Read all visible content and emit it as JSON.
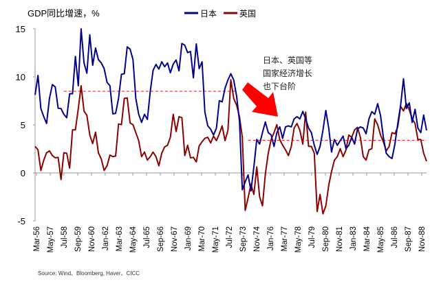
{
  "chart_data": {
    "type": "line",
    "ylabel": "GDP同比增速，%",
    "ylim": [
      -5,
      15
    ],
    "yticks": [
      "15",
      "10",
      "5",
      "0",
      "-5"
    ],
    "ytick_values": [
      15,
      10,
      5,
      0,
      -5
    ],
    "frequency": "quarterly",
    "start": "1956Q1",
    "xtick_labels": [
      "Mar-56",
      "May-57",
      "Jul-58",
      "Sep-59",
      "Nov-60",
      "Jan-62",
      "Mar-63",
      "May-64",
      "Jul-65",
      "Sep-66",
      "Nov-67",
      "Jan-69",
      "Mar-70",
      "May-71",
      "Jul-72",
      "Sep-73",
      "Nov-74",
      "Jan-76",
      "Mar-77",
      "May-78",
      "Jul-79",
      "Sep-80",
      "Nov-81",
      "Jan-83",
      "Mar-84",
      "May-85",
      "Jul-86",
      "Sep-87",
      "Nov-88"
    ],
    "legend_position": "top-center",
    "series": [
      {
        "name": "日本",
        "color": "#00008B",
        "values": [
          8.12,
          10.14,
          6.69,
          5.86,
          5.14,
          7.76,
          9.19,
          8.95,
          6.74,
          6.69,
          6.1,
          5.74,
          8.24,
          8.24,
          12.12,
          9.07,
          15.0,
          11.45,
          10.38,
          14.38,
          11.2,
          13.0,
          11.8,
          11.45,
          10.86,
          9.43,
          9.07,
          6.14,
          6.21,
          7.76,
          10.26,
          10.33,
          13.12,
          12.88,
          11.8,
          7.76,
          6.1,
          5.26,
          6.1,
          5.57,
          8.48,
          10.67,
          11.29,
          10.81,
          11.57,
          11.05,
          11.45,
          10.43,
          11.33,
          11.76,
          10.62,
          13.48,
          13.29,
          12.52,
          12.64,
          9.9,
          13.43,
          10.86,
          11.57,
          6.33,
          4.9,
          4.55,
          3.95,
          4.67,
          7.52,
          7.4,
          8.83,
          9.67,
          10.33,
          9.67,
          8.0,
          5.38,
          -1.76,
          -0.93,
          -0.21,
          -1.88,
          0.62,
          3.48,
          3.0,
          4.19,
          5.31,
          4.19,
          3.95,
          2.76,
          4.19,
          4.79,
          3.6,
          4.79,
          4.9,
          4.79,
          5.62,
          5.86,
          5.62,
          6.4,
          5.62,
          4.67,
          4.19,
          2.88,
          1.93,
          2.76,
          4.43,
          6.5,
          4.67,
          2.17,
          3.48,
          2.88,
          3.36,
          3.83,
          2.52,
          2.88,
          3.71,
          3.0,
          4.55,
          4.79,
          4.67,
          4.07,
          5.62,
          6.38,
          6.1,
          7.21,
          5.98,
          3.71,
          2.05,
          1.69,
          1.5,
          3.0,
          5.14,
          7.05,
          9.79,
          6.69,
          7.29,
          5.26,
          6.62,
          4.67,
          4.19,
          6.02,
          4.43
        ]
      },
      {
        "name": "英国",
        "color": "#8B0000",
        "values": [
          2.76,
          2.4,
          0.26,
          1.33,
          2.1,
          2.29,
          1.81,
          1.57,
          1.62,
          -0.69,
          2.1,
          2.05,
          0.5,
          4.48,
          4.48,
          6.69,
          9.07,
          6.45,
          5.98,
          3.95,
          3.05,
          4.24,
          2.1,
          1.45,
          0.26,
          0.74,
          1.86,
          1.69,
          1.76,
          5.1,
          5.02,
          7.76,
          7.81,
          5.19,
          5.02,
          4.19,
          3.36,
          1.69,
          2.17,
          1.33,
          1.69,
          2.17,
          1.69,
          0.74,
          2.05,
          2.71,
          2.88,
          3.71,
          6.1,
          4.31,
          5.86,
          5.74,
          1.81,
          2.88,
          1.57,
          1.62,
          1.14,
          2.81,
          3.24,
          3.6,
          3.71,
          3.12,
          3.83,
          3.36,
          4.07,
          4.9,
          3.36,
          4.43,
          9.71,
          7.76,
          7.05,
          5.86,
          3.71,
          -3.9,
          -2.6,
          -1.17,
          -2.24,
          0.62,
          -2.48,
          -3.43,
          -0.1,
          2.05,
          3.48,
          4.19,
          5.02,
          3.48,
          2.88,
          2.4,
          1.81,
          2.76,
          4.67,
          5.14,
          4.43,
          3.0,
          6.33,
          2.76,
          2.76,
          2.05,
          -4.02,
          -2.24,
          -4.26,
          -3.43,
          -1.29,
          0.14,
          1.33,
          1.69,
          2.52,
          1.69,
          2.4,
          3.95,
          3.71,
          4.48,
          4.74,
          3.71,
          1.69,
          1.33,
          2.4,
          2.52,
          5.62,
          5.02,
          3.95,
          3.24,
          2.29,
          2.76,
          4.19,
          4.07,
          4.79,
          6.93,
          6.45,
          7.24,
          6.57,
          5.62,
          5.14,
          3.48,
          3.48,
          2.05,
          1.21
        ]
      }
    ],
    "reference_lines": [
      {
        "value": 8.5,
        "from_index": 10,
        "to_index": 70,
        "color": "#FF0000",
        "style": "dashed"
      },
      {
        "value": 3.4,
        "from_index": 74,
        "to_index": 136,
        "color": "#FF0000",
        "style": "dashed"
      }
    ],
    "annotation": {
      "lines": [
        "日本、英国等",
        "国家经济增长",
        "也下台阶"
      ],
      "arrow_color": "#FF0000"
    }
  },
  "source": "Source: Wind、Bloomberg, Haver、CICC"
}
